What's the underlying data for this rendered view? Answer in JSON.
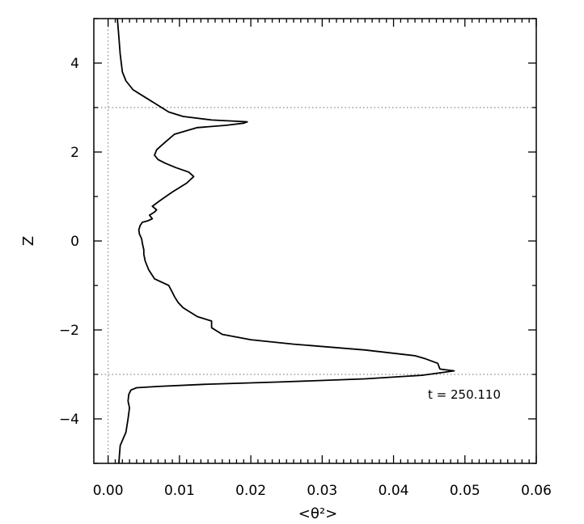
{
  "chart_data": {
    "type": "line",
    "xlabel": "<θ²>",
    "ylabel": "Z",
    "xlim": [
      -0.002,
      0.06
    ],
    "ylim": [
      -5,
      5
    ],
    "x_ticks": [
      0.0,
      0.01,
      0.02,
      0.03,
      0.04,
      0.05,
      0.06
    ],
    "x_tick_labels": [
      "0.00",
      "0.01",
      "0.02",
      "0.03",
      "0.04",
      "0.05",
      "0.06"
    ],
    "y_ticks": [
      -4,
      -2,
      0,
      2,
      4
    ],
    "y_tick_labels": [
      "−4",
      "−2",
      "0",
      "2",
      "4"
    ],
    "reference_lines": {
      "horizontal_dotted": [
        3,
        -3
      ],
      "vertical_dotted": [
        0
      ]
    },
    "annotation": "t = 250.110",
    "grid": false,
    "series": [
      {
        "x": [
          0.0015,
          0.0017,
          0.0025,
          0.0028,
          0.003,
          0.0028,
          0.0029,
          0.0032,
          0.004,
          0.007,
          0.014,
          0.024,
          0.036,
          0.044,
          0.0485,
          0.0465,
          0.0462,
          0.0445,
          0.043,
          0.036,
          0.026,
          0.02,
          0.016,
          0.0145,
          0.0145,
          0.0125,
          0.0115,
          0.0105,
          0.0098,
          0.0093,
          0.009,
          0.0085,
          0.0065,
          0.0057,
          0.0052,
          0.005,
          0.005,
          0.0048,
          0.0047,
          0.0044,
          0.0043,
          0.0045,
          0.0048,
          0.0055,
          0.0062,
          0.0058,
          0.0065,
          0.0068,
          0.0062,
          0.0072,
          0.009,
          0.011,
          0.012,
          0.0113,
          0.0095,
          0.008,
          0.007,
          0.0065,
          0.0068,
          0.0075,
          0.0082,
          0.0093,
          0.0125,
          0.0165,
          0.019,
          0.0195,
          0.0145,
          0.0105,
          0.0085,
          0.0075,
          0.0065,
          0.005,
          0.0035,
          0.0025,
          0.002,
          0.0017,
          0.0015,
          0.0013
        ],
        "y": [
          -5.0,
          -4.6,
          -4.3,
          -4.0,
          -3.75,
          -3.6,
          -3.45,
          -3.35,
          -3.3,
          -3.27,
          -3.22,
          -3.17,
          -3.1,
          -3.02,
          -2.92,
          -2.88,
          -2.75,
          -2.65,
          -2.58,
          -2.45,
          -2.32,
          -2.22,
          -2.1,
          -1.95,
          -1.8,
          -1.7,
          -1.6,
          -1.5,
          -1.38,
          -1.25,
          -1.15,
          -1.0,
          -0.85,
          -0.65,
          -0.45,
          -0.3,
          -0.2,
          -0.05,
          0.05,
          0.15,
          0.25,
          0.35,
          0.42,
          0.45,
          0.5,
          0.58,
          0.65,
          0.7,
          0.78,
          0.9,
          1.1,
          1.3,
          1.45,
          1.55,
          1.65,
          1.75,
          1.83,
          1.93,
          2.05,
          2.15,
          2.25,
          2.4,
          2.55,
          2.6,
          2.65,
          2.68,
          2.72,
          2.8,
          2.9,
          3.0,
          3.1,
          3.25,
          3.4,
          3.6,
          3.8,
          4.2,
          4.6,
          5.0
        ]
      }
    ]
  }
}
